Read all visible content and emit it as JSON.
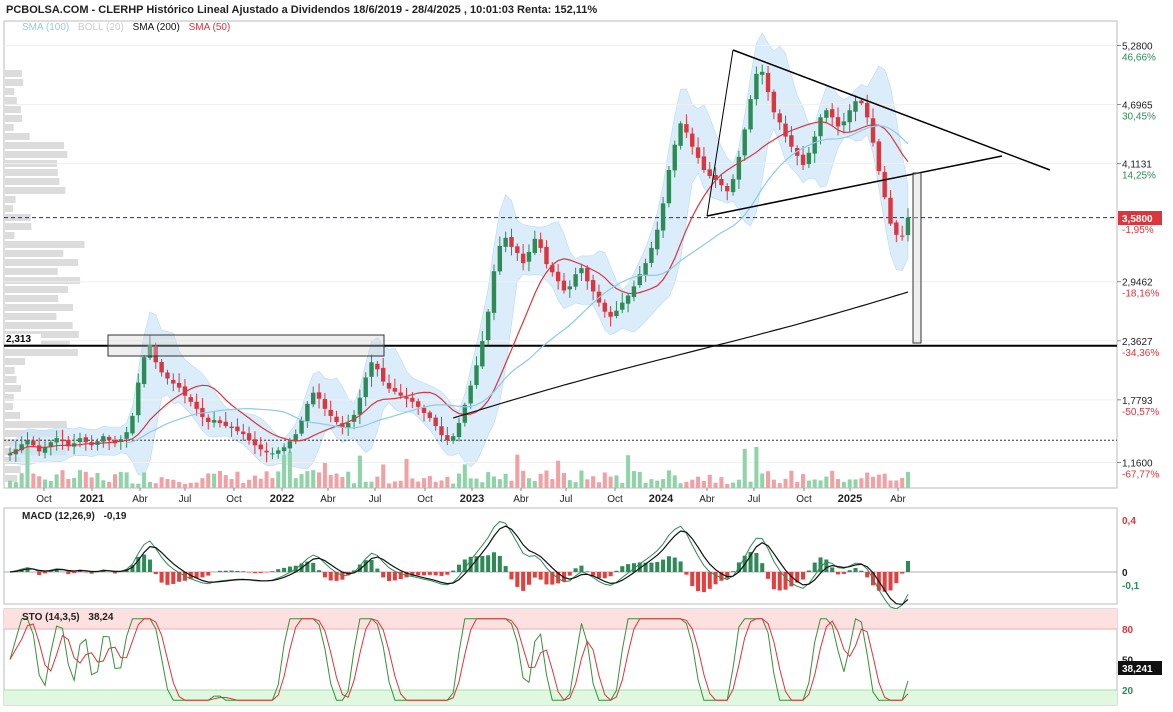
{
  "header": {
    "title": "PCBOLSA.COM - CLERHP Histórico Lineal Ajustado a Dividendos 18/6/2019 - 28/4/2025 , 10:01:03 Renta: 152,11%"
  },
  "legend": {
    "sma100": "SMA (100)",
    "boll": "BOLL (20)",
    "sma200": "SMA (200)",
    "sma50": "SMA (50)"
  },
  "colors": {
    "up": "#2e8b57",
    "down": "#d9363e",
    "sma50": "#d9363e",
    "sma100": "#8ec9ee",
    "sma200": "#111111",
    "boll_fill": "#cfe7f8",
    "current_price": "#2222cc",
    "current_price_label_bg": "#d9363e",
    "ob_zone": "#fde0e0",
    "os_zone": "#e0f7e0"
  },
  "macd": {
    "label": "MACD (12,26,9)",
    "value": "-0,19"
  },
  "sto": {
    "label": "STO (14,3,5)",
    "value": "38,24",
    "current_label": "38,241"
  },
  "level_label": "2,313",
  "current_price_label": "3,5800",
  "chart_data": [
    {
      "type": "candlestick",
      "title": "PCBOLSA.COM - CLERHP Histórico Lineal Ajustado a Dividendos 18/6/2019 - 28/4/2025 , 10:01:03 Renta: 152,11%",
      "x_ticks": [
        "Oct",
        "2021",
        "Abr",
        "Jul",
        "Oct",
        "2022",
        "Abr",
        "Jul",
        "Oct",
        "2023",
        "Abr",
        "Jul",
        "Oct",
        "2024",
        "Abr",
        "Jul",
        "Oct",
        "2025",
        "Abr"
      ],
      "x_ticks_bold": [
        "2021",
        "2022",
        "2023",
        "2024",
        "2025"
      ],
      "y_ticks": [
        {
          "value": 5.28,
          "label": "5,2800",
          "pct": "46,66%"
        },
        {
          "value": 4.6965,
          "label": "4,6965",
          "pct": "30,45%"
        },
        {
          "value": 4.1131,
          "label": "4,1131",
          "pct": "14,25%"
        },
        {
          "value": 2.9462,
          "label": "2,9462",
          "pct": "-18,16%"
        },
        {
          "value": 2.3627,
          "label": "2,3627",
          "pct": "-34,36%"
        },
        {
          "value": 1.7793,
          "label": "1,7793",
          "pct": "-50,57%"
        },
        {
          "value": 1.16,
          "label": "1,1600",
          "pct": "-67,77%"
        }
      ],
      "current_price": 3.58,
      "current_price_pct": "-1,95%",
      "horizontal_level": 2.313,
      "dotted_level": 1.38,
      "close": [
        1.25,
        1.29,
        1.34,
        1.38,
        1.33,
        1.27,
        1.31,
        1.36,
        1.4,
        1.37,
        1.32,
        1.35,
        1.4,
        1.36,
        1.33,
        1.37,
        1.42,
        1.38,
        1.35,
        1.39,
        1.46,
        1.62,
        1.95,
        2.2,
        2.32,
        2.15,
        2.05,
        1.99,
        1.94,
        1.9,
        1.82,
        1.76,
        1.69,
        1.61,
        1.56,
        1.58,
        1.55,
        1.52,
        1.5,
        1.47,
        1.44,
        1.38,
        1.33,
        1.29,
        1.26,
        1.25,
        1.28,
        1.31,
        1.37,
        1.44,
        1.58,
        1.74,
        1.85,
        1.79,
        1.69,
        1.62,
        1.56,
        1.51,
        1.55,
        1.63,
        1.8,
        2.0,
        2.15,
        2.08,
        1.96,
        1.89,
        1.86,
        1.82,
        1.79,
        1.76,
        1.71,
        1.65,
        1.6,
        1.52,
        1.43,
        1.38,
        1.42,
        1.55,
        1.73,
        1.92,
        2.12,
        2.36,
        2.65,
        3.05,
        3.3,
        3.38,
        3.29,
        3.23,
        3.13,
        3.24,
        3.37,
        3.28,
        3.12,
        3.04,
        2.95,
        2.86,
        2.9,
        3.02,
        3.08,
        2.95,
        2.85,
        2.74,
        2.65,
        2.6,
        2.66,
        2.74,
        2.81,
        2.9,
        3.02,
        3.13,
        3.28,
        3.46,
        3.72,
        4.05,
        4.3,
        4.51,
        4.42,
        4.28,
        4.17,
        4.05,
        3.99,
        3.95,
        3.9,
        3.84,
        3.96,
        4.18,
        4.45,
        4.75,
        5.0,
        5.02,
        4.82,
        4.62,
        4.52,
        4.38,
        4.28,
        4.19,
        4.1,
        4.22,
        4.38,
        4.57,
        4.64,
        4.57,
        4.48,
        4.53,
        4.64,
        4.73,
        4.71,
        4.57,
        4.32,
        4.04,
        3.78,
        3.52,
        3.41,
        3.4,
        3.58
      ]
    },
    {
      "type": "line",
      "title": "MACD (12,26,9)",
      "y_ticks": [
        {
          "value": 0.4,
          "label": "0,4"
        },
        {
          "value": 0,
          "label": "0"
        },
        {
          "value": -0.1,
          "label": "-0,1"
        }
      ]
    },
    {
      "type": "line",
      "title": "STO (14,3,5)",
      "y_ticks": [
        {
          "value": 80,
          "label": "80"
        },
        {
          "value": 50,
          "label": "50"
        },
        {
          "value": 20,
          "label": "20"
        }
      ]
    }
  ]
}
